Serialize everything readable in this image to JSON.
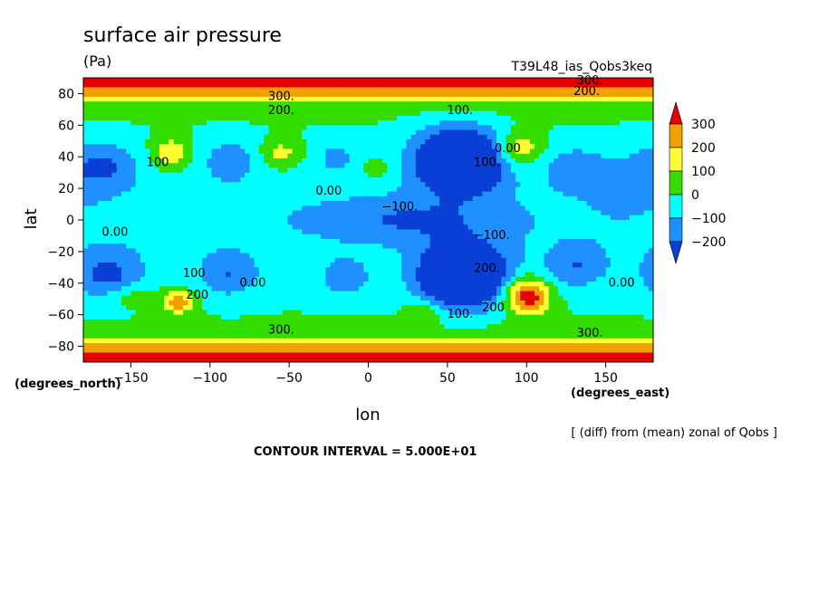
{
  "chart_data": {
    "type": "contour",
    "title": "surface air pressure",
    "units": "(Pa)",
    "run_label": "T39L48_ias_Qobs3keq",
    "xlabel": "lon",
    "ylabel": "lat",
    "x_units": "(degrees_east)",
    "y_units": "(degrees_north)",
    "xlim": [
      -180,
      180
    ],
    "ylim": [
      -90,
      90
    ],
    "x_ticks": [
      -150,
      -100,
      -50,
      0,
      50,
      100,
      150
    ],
    "y_ticks": [
      80,
      60,
      40,
      20,
      0,
      -20,
      -40,
      -60,
      -80
    ],
    "x_tick_labels": [
      "−150",
      "−100",
      "−50",
      "0",
      "50",
      "100",
      "150"
    ],
    "y_tick_labels": [
      "80",
      "60",
      "40",
      "20",
      "0",
      "−20",
      "−40",
      "−60",
      "−80"
    ],
    "colorbar": {
      "labels": [
        "300",
        "200",
        "100",
        "0",
        "−100",
        "−200"
      ],
      "colors": [
        "#e60000",
        "#f0a000",
        "#ffff33",
        "#33dd00",
        "#00ffff",
        "#1e90ff",
        "#0a3fd6"
      ]
    },
    "contour_labels": [
      {
        "text": "300.",
        "lon": -55,
        "lat": 76
      },
      {
        "text": "200.",
        "lon": -55,
        "lat": 67
      },
      {
        "text": "300.",
        "lon": 140,
        "lat": 86
      },
      {
        "text": "200.",
        "lon": 138,
        "lat": 79
      },
      {
        "text": "100.",
        "lon": 58,
        "lat": 67
      },
      {
        "text": "100",
        "lon": -133,
        "lat": 34
      },
      {
        "text": "0.00",
        "lon": 88,
        "lat": 43
      },
      {
        "text": "100.",
        "lon": 75,
        "lat": 34
      },
      {
        "text": "0.00",
        "lon": -25,
        "lat": 16
      },
      {
        "text": "−100.",
        "lon": 20,
        "lat": 6
      },
      {
        "text": "0.00",
        "lon": -160,
        "lat": -10
      },
      {
        "text": "−100.",
        "lon": 78,
        "lat": -12
      },
      {
        "text": "100",
        "lon": -110,
        "lat": -36
      },
      {
        "text": "200",
        "lon": -108,
        "lat": -50
      },
      {
        "text": "0.00",
        "lon": -73,
        "lat": -42
      },
      {
        "text": "200.",
        "lon": 75,
        "lat": -33
      },
      {
        "text": "100.",
        "lon": 58,
        "lat": -62
      },
      {
        "text": "200",
        "lon": 79,
        "lat": -58
      },
      {
        "text": "300.",
        "lon": -55,
        "lat": -72
      },
      {
        "text": "300.",
        "lon": 140,
        "lat": -74
      },
      {
        "text": "0.00",
        "lon": 160,
        "lat": -42
      }
    ],
    "grid": false
  },
  "footer": {
    "note": "[ (diff) from (mean) zonal of Qobs ]",
    "contour_interval": "CONTOUR INTERVAL = 5.000E+01"
  }
}
